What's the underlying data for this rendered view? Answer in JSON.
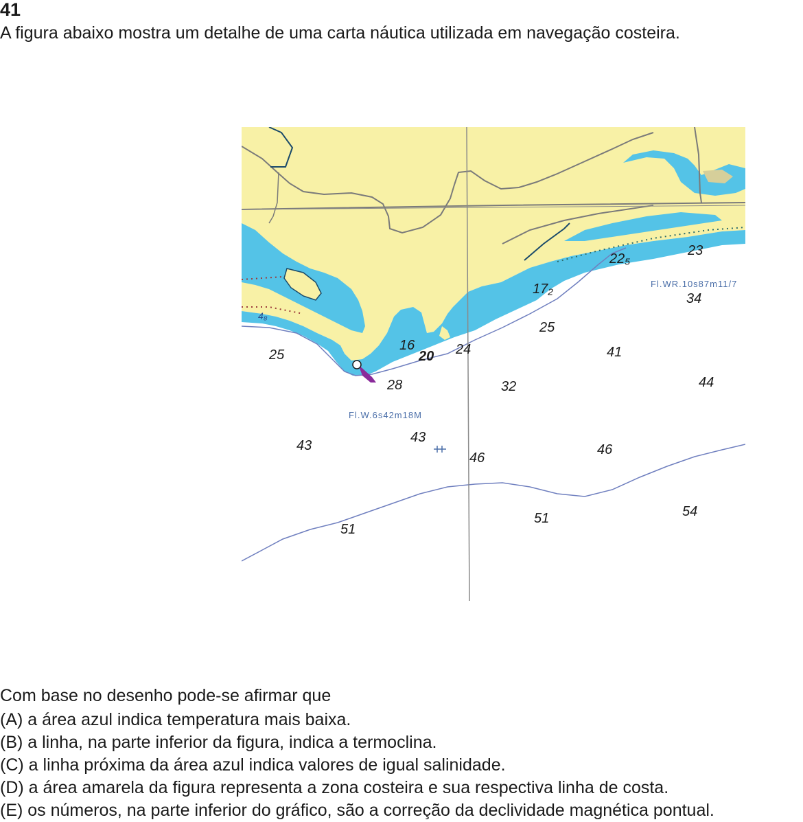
{
  "question": {
    "number": "41",
    "intro": "A figura abaixo mostra um detalhe de uma carta náutica utilizada em navegação costeira.",
    "stem": "Com base no desenho pode-se afirmar que",
    "options": [
      {
        "letter": "(A)",
        "text": " a área azul indica temperatura mais baixa."
      },
      {
        "letter": "(B)",
        "text": " a linha, na parte inferior da figura, indica a termoclina."
      },
      {
        "letter": "(C)",
        "text": " a linha próxima da área azul indica valores de igual salinidade."
      },
      {
        "letter": "(D)",
        "text": " a área amarela da figura representa a zona costeira e sua respectiva linha de costa."
      },
      {
        "letter": "(E)",
        "text": " os números, na parte inferior do gráfico, são a correção da declividade magnética pontual."
      }
    ]
  },
  "chart_map": {
    "colors": {
      "land": "#f8f1a6",
      "shallow_water": "#54c3e7",
      "sea": "#ffffff",
      "contour": "#6f7fbf",
      "roads": "#7a7a7a",
      "light_label": "#4a6ea8",
      "lighthouse": "#8a2a9a"
    },
    "light_labels": {
      "east": "Fl.WR.10s87m11/7",
      "south": "Fl.W.6s42m18M"
    },
    "depths": {
      "d48": "4₈",
      "d25a": "25",
      "d16": "16",
      "d20": "20",
      "d24": "24",
      "d28": "28",
      "d172": "17₂",
      "d225": "22₅",
      "d23": "23",
      "d34": "34",
      "d25b": "25",
      "d41": "41",
      "d44": "44",
      "d32": "32",
      "d43a": "43",
      "d43b": "43",
      "d46a": "46",
      "d46b": "46",
      "d51a": "51",
      "d51b": "51",
      "d54": "54"
    }
  }
}
